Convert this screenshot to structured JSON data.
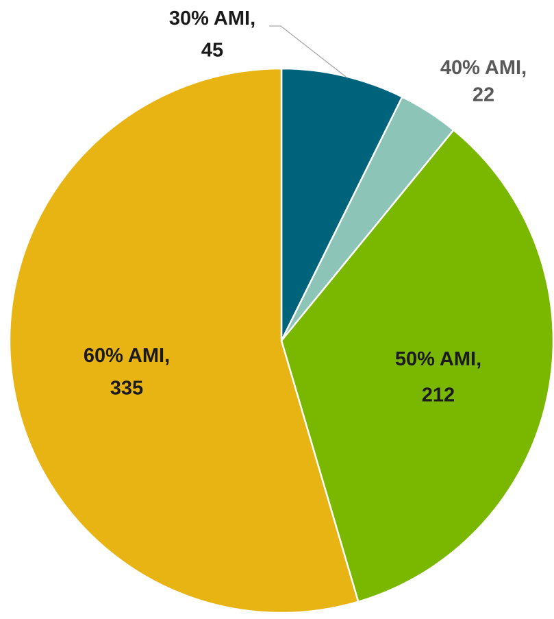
{
  "chart_data": {
    "type": "pie",
    "categories": [
      "30% AMI",
      "40% AMI",
      "50% AMI",
      "60% AMI"
    ],
    "label_separator": ",",
    "values": [
      45,
      22,
      212,
      335
    ],
    "colors": [
      "#00637c",
      "#8cc4b8",
      "#7ab800",
      "#e8b414"
    ],
    "label_colors": [
      "#1a1a1a",
      "#595959",
      "#1a1a1a",
      "#1a1a1a"
    ]
  }
}
